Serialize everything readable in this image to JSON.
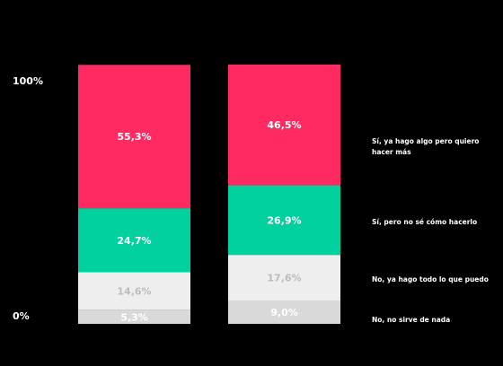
{
  "chart_data": {
    "type": "bar",
    "stacked": true,
    "title": "",
    "xlabel": "",
    "ylabel": "",
    "y_ticks": [
      "100%",
      "0%"
    ],
    "ylim": [
      0,
      100
    ],
    "categories": [
      "",
      ""
    ],
    "series": [
      {
        "name": "No, no sirve de nada",
        "color": "#d9d9d9",
        "label_color": "#ffffff",
        "values": [
          5.3,
          9.0
        ],
        "labels": [
          "5,3%",
          "9,0%"
        ]
      },
      {
        "name": "No, ya hago todo lo que puedo",
        "color": "#eeeeee",
        "label_color": "#bcbcbc",
        "values": [
          14.6,
          17.6
        ],
        "labels": [
          "14,6%",
          "17,6%"
        ]
      },
      {
        "name": "Sí, pero no sé cómo hacerlo",
        "color": "#00d19e",
        "label_color": "#ffffff",
        "values": [
          24.7,
          26.9
        ],
        "labels": [
          "24,7%",
          "26,9%"
        ]
      },
      {
        "name": "Sí, ya hago algo pero quiero hacer más",
        "color": "#ff2a62",
        "label_color": "#ffffff",
        "values": [
          55.3,
          46.5
        ],
        "labels": [
          "55,3%",
          "46,5%"
        ]
      }
    ],
    "grid": false,
    "legend_position": "right"
  }
}
